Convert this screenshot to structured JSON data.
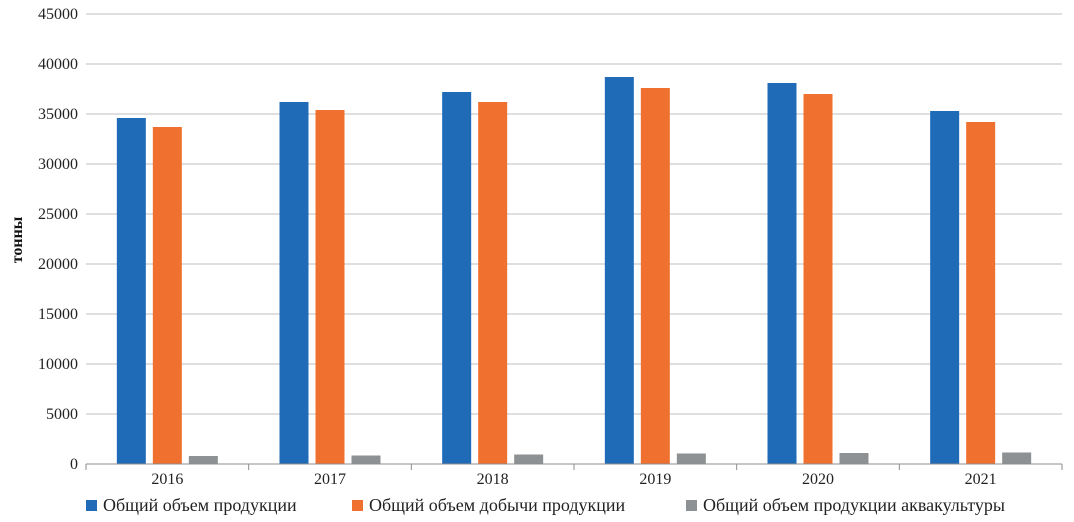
{
  "chart_data": {
    "type": "bar",
    "title": "",
    "xlabel": "",
    "ylabel": "тонны",
    "ylim": [
      0,
      45000
    ],
    "yticks": [
      0,
      5000,
      10000,
      15000,
      20000,
      25000,
      30000,
      35000,
      40000,
      45000
    ],
    "categories": [
      "2016",
      "2017",
      "2018",
      "2019",
      "2020",
      "2021"
    ],
    "series": [
      {
        "name": "Общий объем продукции",
        "color": "#1f6bb8",
        "values": [
          34600,
          36200,
          37200,
          38700,
          38100,
          35300
        ]
      },
      {
        "name": "Общий объем добычи продукции",
        "color": "#f07030",
        "values": [
          33700,
          35400,
          36200,
          37600,
          37000,
          34200
        ]
      },
      {
        "name": "Общий объем продукции аквакультуры",
        "color": "#8e9193",
        "values": [
          800,
          850,
          950,
          1050,
          1100,
          1150
        ]
      }
    ],
    "grid": true,
    "legend_position": "bottom"
  }
}
